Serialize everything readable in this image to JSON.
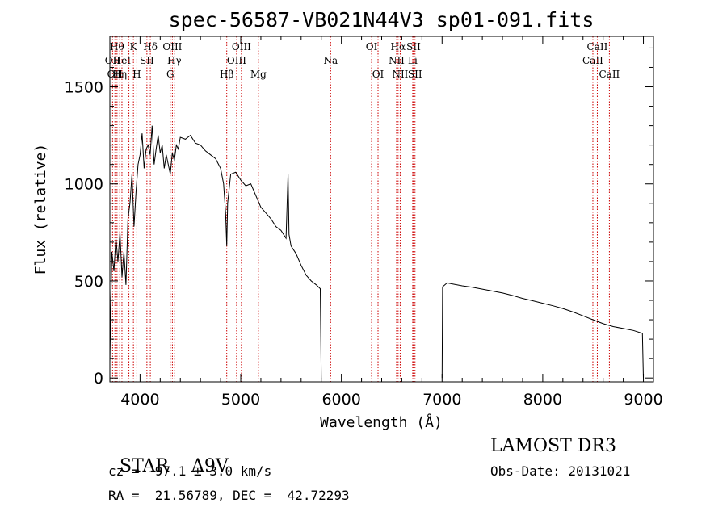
{
  "chart_data": {
    "type": "line",
    "title": "spec-56587-VB021N44V3_sp01-091.fits",
    "xlabel": "Wavelength (Å)",
    "ylabel": "Flux (relative)",
    "xlim": [
      3700,
      9100
    ],
    "ylim": [
      -20,
      1760
    ],
    "xticks": [
      4000,
      5000,
      6000,
      7000,
      8000,
      9000
    ],
    "yticks": [
      0,
      500,
      1000,
      1500
    ],
    "grid": false,
    "line_color": "#000000",
    "marker_color": "#cc0000",
    "series": [
      {
        "name": "spectrum",
        "x": [
          3700,
          3710,
          3720,
          3740,
          3760,
          3780,
          3800,
          3820,
          3840,
          3860,
          3880,
          3900,
          3920,
          3940,
          3960,
          3980,
          4000,
          4020,
          4040,
          4060,
          4080,
          4100,
          4120,
          4140,
          4160,
          4180,
          4200,
          4220,
          4240,
          4260,
          4280,
          4300,
          4320,
          4340,
          4360,
          4380,
          4400,
          4450,
          4500,
          4550,
          4600,
          4650,
          4700,
          4750,
          4800,
          4830,
          4850,
          4861,
          4870,
          4900,
          4950,
          5000,
          5050,
          5100,
          5150,
          5200,
          5250,
          5300,
          5350,
          5400,
          5450,
          5470,
          5480,
          5500,
          5550,
          5600,
          5650,
          5700,
          5750,
          5790,
          5800
        ],
        "y": [
          80,
          400,
          650,
          550,
          720,
          600,
          750,
          520,
          650,
          480,
          820,
          900,
          1050,
          780,
          960,
          1100,
          1150,
          1260,
          1080,
          1180,
          1200,
          1150,
          1300,
          1100,
          1180,
          1250,
          1160,
          1200,
          1080,
          1150,
          1100,
          1050,
          1160,
          1120,
          1200,
          1180,
          1240,
          1230,
          1250,
          1210,
          1200,
          1170,
          1150,
          1130,
          1080,
          1000,
          850,
          680,
          900,
          1050,
          1060,
          1020,
          990,
          1000,
          940,
          880,
          850,
          820,
          780,
          760,
          720,
          1050,
          740,
          680,
          640,
          580,
          530,
          500,
          480,
          460,
          0
        ]
      },
      {
        "name": "spectrum-red",
        "x": [
          7000,
          7005,
          7050,
          7100,
          7200,
          7300,
          7400,
          7500,
          7600,
          7700,
          7800,
          7900,
          8000,
          8100,
          8200,
          8300,
          8400,
          8500,
          8600,
          8700,
          8800,
          8900,
          8990,
          9000
        ],
        "y": [
          0,
          470,
          490,
          485,
          475,
          468,
          458,
          448,
          438,
          425,
          410,
          398,
          385,
          372,
          358,
          340,
          320,
          300,
          280,
          265,
          255,
          245,
          230,
          0
        ]
      }
    ],
    "lines": [
      {
        "x": 3727,
        "label": "OII",
        "row": 2
      },
      {
        "x": 3750,
        "label": "OII",
        "row": 3
      },
      {
        "x": 3771,
        "label": "Hθ",
        "row": 1
      },
      {
        "x": 3798,
        "label": "Hη",
        "row": 3
      },
      {
        "x": 3820,
        "label": "HeI",
        "row": 2
      },
      {
        "x": 3889,
        "label": "",
        "row": 0
      },
      {
        "x": 3934,
        "label": "K",
        "row": 1
      },
      {
        "x": 3968,
        "label": "H",
        "row": 3
      },
      {
        "x": 4068,
        "label": "SII",
        "row": 2
      },
      {
        "x": 4102,
        "label": "Hδ",
        "row": 1
      },
      {
        "x": 4300,
        "label": "G",
        "row": 3
      },
      {
        "x": 4321,
        "label": "OIII",
        "row": 1
      },
      {
        "x": 4340,
        "label": "Hγ",
        "row": 2
      },
      {
        "x": 4861,
        "label": "Hβ",
        "row": 3
      },
      {
        "x": 4959,
        "label": "OIII",
        "row": 2
      },
      {
        "x": 5007,
        "label": "OIII",
        "row": 1
      },
      {
        "x": 5175,
        "label": "Mg",
        "row": 3
      },
      {
        "x": 5893,
        "label": "Na",
        "row": 2
      },
      {
        "x": 6300,
        "label": "OI",
        "row": 1
      },
      {
        "x": 6364,
        "label": "OI",
        "row": 3
      },
      {
        "x": 6548,
        "label": "NII",
        "row": 2
      },
      {
        "x": 6563,
        "label": "Hα",
        "row": 1
      },
      {
        "x": 6584,
        "label": "NII",
        "row": 3
      },
      {
        "x": 6708,
        "label": "Li",
        "row": 2
      },
      {
        "x": 6717,
        "label": "SII",
        "row": 1
      },
      {
        "x": 6731,
        "label": "SII",
        "row": 3
      },
      {
        "x": 8498,
        "label": "CaII",
        "row": 2
      },
      {
        "x": 8542,
        "label": "CaII",
        "row": 1
      },
      {
        "x": 8662,
        "label": "CaII",
        "row": 3
      }
    ]
  },
  "info": {
    "type_label": "STAR",
    "subclass": "A9V",
    "survey": "LAMOST DR3",
    "cz": "cz = -97.1 ± 3.0 km/s",
    "obs_date": "Obs-Date: 20131021",
    "radec": "RA =  21.56789, DEC =  42.72293"
  }
}
